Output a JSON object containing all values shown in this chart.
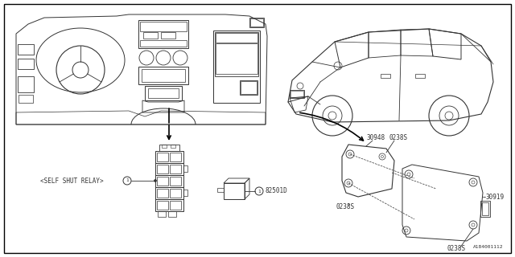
{
  "bg_color": "#ffffff",
  "line_color": "#333333",
  "border": [
    5,
    5,
    635,
    315
  ],
  "labels": {
    "self_shut_relay": "<SELF SHUT RELAY>",
    "num1": "1",
    "p82501D": "82501D",
    "p30948": "30948",
    "p0238S_1": "0238S",
    "p0238S_2": "0238S",
    "p0238S_3": "0238S",
    "p30919": "30919",
    "watermark": "A184001112"
  },
  "font_size": 5.5,
  "font_size_sm": 5.0,
  "font_size_wm": 4.5
}
